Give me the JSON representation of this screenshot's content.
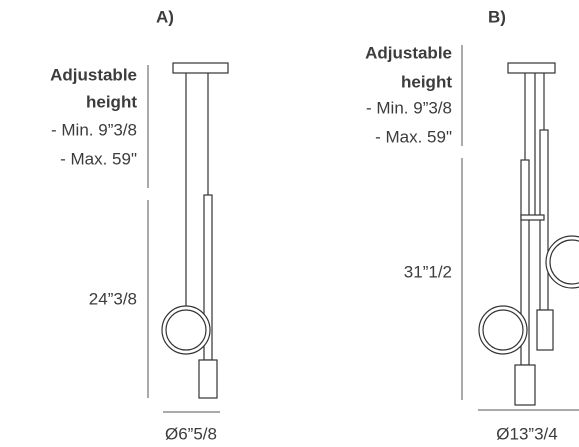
{
  "diagrams": [
    {
      "label": "A)",
      "adjustable": {
        "title": [
          "Adjustable",
          "height"
        ],
        "min": "- Min. 9”3/8",
        "max": "- Max. 59\""
      },
      "height": "24”3/8",
      "diameter": "Ø6”5/8"
    },
    {
      "label": "B)",
      "adjustable": {
        "title": [
          "Adjustable",
          "height"
        ],
        "min": "- Min. 9”3/8",
        "max": "- Max. 59\""
      },
      "height": "31”1/2",
      "diameter": "Ø13”3/4"
    }
  ]
}
